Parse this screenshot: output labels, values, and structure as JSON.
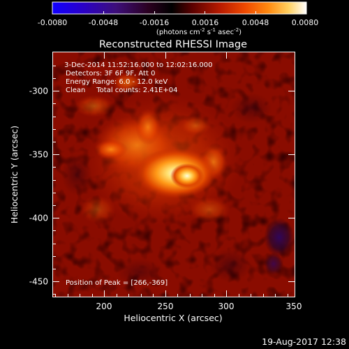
{
  "colorbar": {
    "tick_labels": [
      "-0.0080",
      "-0.0048",
      "-0.0016",
      "0.0016",
      "0.0048",
      "0.0080"
    ],
    "unit_label_parts": {
      "prefix": "(photons cm",
      "sup1": "-2",
      "mid1": " s",
      "sup2": "-1",
      "mid2": " asec",
      "sup3": "-2",
      "suffix": ")"
    },
    "range": [
      -0.008,
      0.008
    ],
    "colormap": [
      "#1100ff",
      "#2a00c8",
      "#3d0e7a",
      "#2a001f",
      "#000000",
      "#5a0000",
      "#b81a00",
      "#f04a00",
      "#ff8a10",
      "#ffd060",
      "#ffffff"
    ]
  },
  "image": {
    "title": "Reconstructed RHESSI Image",
    "info_lines": [
      " 3-Dec-2014 11:52:16.000 to 12:02:16.000",
      "Detectors: 3F 6F 9F, Att 0",
      "Energy Range: 6.0 - 12.0 keV",
      "Clean     Total counts: 2.41E+04"
    ],
    "peak_text": "Position of Peak = [266,-369]",
    "peak_position": [
      266,
      -369
    ],
    "x_range": [
      158,
      350
    ],
    "y_range": [
      -465,
      -270
    ]
  },
  "axes": {
    "xlabel": "Heliocentric X (arcsec)",
    "ylabel": "Heliocentric Y (arcsec)",
    "x_ticks": [
      "200",
      "250",
      "300",
      "350"
    ],
    "y_ticks": [
      "-300",
      "-350",
      "-400",
      "-450"
    ]
  },
  "footer": {
    "timestamp": "19-Aug-2017 12:38"
  }
}
